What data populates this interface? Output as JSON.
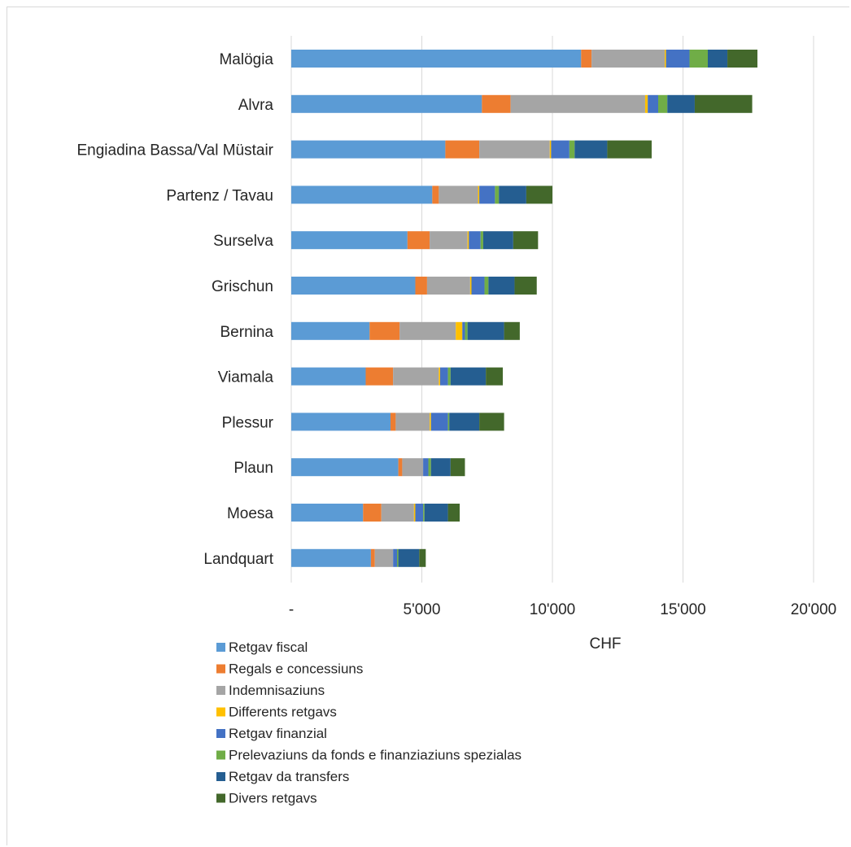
{
  "chart_data": {
    "type": "bar",
    "orientation": "horizontal",
    "stacked": true,
    "title": "",
    "xlabel": "CHF",
    "ylabel": "",
    "xlim": [
      0,
      20000
    ],
    "xticks": [
      0,
      5000,
      10000,
      15000,
      20000
    ],
    "xtick_labels": [
      "-",
      "5'000",
      "10'000",
      "15'000",
      "20'000"
    ],
    "grid": "vertical",
    "legend_position": "bottom-left",
    "categories": [
      "Malögia",
      "Alvra",
      "Engiadina Bassa/Val Müstair",
      "Partenz / Tavau",
      "Surselva",
      "Grischun",
      "Bernina",
      "Viamala",
      "Plessur",
      "Plaun",
      "Moesa",
      "Landquart"
    ],
    "series": [
      {
        "name": "Retgav fiscal",
        "color": "#5B9BD5",
        "values": [
          11100,
          7300,
          5900,
          5400,
          4450,
          4750,
          3000,
          2850,
          3800,
          4100,
          2750,
          3050
        ]
      },
      {
        "name": "Regals e concessiuns",
        "color": "#ED7D31",
        "values": [
          400,
          1100,
          1300,
          250,
          850,
          450,
          1150,
          1050,
          200,
          150,
          700,
          150
        ]
      },
      {
        "name": "Indemnisaziuns",
        "color": "#A5A5A5",
        "values": [
          2800,
          5150,
          2700,
          1500,
          1450,
          1650,
          2150,
          1750,
          1300,
          800,
          1250,
          700
        ]
      },
      {
        "name": "Differents retgavs",
        "color": "#FFC000",
        "values": [
          50,
          100,
          50,
          50,
          50,
          50,
          250,
          50,
          50,
          0,
          50,
          0
        ]
      },
      {
        "name": "Retgav finanzial",
        "color": "#4472C4",
        "values": [
          900,
          400,
          700,
          600,
          450,
          500,
          100,
          300,
          650,
          200,
          300,
          150
        ]
      },
      {
        "name": "Prelevaziuns da fonds e finanziaziuns spezialas",
        "color": "#70AD47",
        "values": [
          700,
          350,
          200,
          150,
          100,
          150,
          100,
          100,
          50,
          100,
          50,
          50
        ]
      },
      {
        "name": "Retgav da transfers",
        "color": "#255E91",
        "values": [
          750,
          1050,
          1250,
          1050,
          1150,
          1000,
          1400,
          1350,
          1150,
          750,
          900,
          800
        ]
      },
      {
        "name": "Divers retgavs",
        "color": "#43682B",
        "values": [
          1150,
          2200,
          1700,
          1000,
          950,
          850,
          600,
          650,
          950,
          550,
          450,
          250
        ]
      }
    ]
  }
}
